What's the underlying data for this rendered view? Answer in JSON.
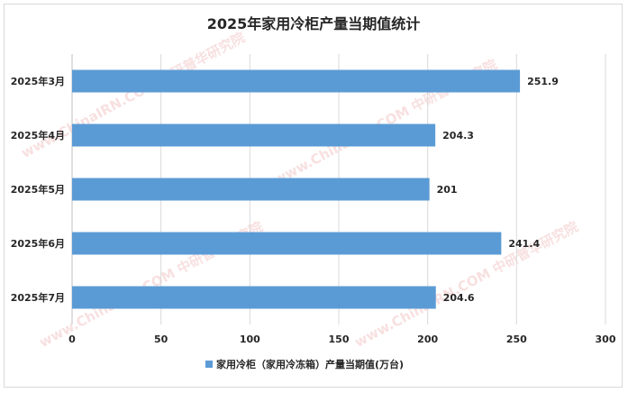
{
  "chart_data": {
    "type": "bar",
    "orientation": "horizontal",
    "title": "2025年家用冷柜产量当期值统计",
    "categories": [
      "2025年3月",
      "2025年4月",
      "2025年5月",
      "2025年6月",
      "2025年7月"
    ],
    "series": [
      {
        "name": "家用冷柜（家用冷冻箱）产量当期值(万台)",
        "values": [
          251.9,
          204.3,
          201,
          241.4,
          204.6
        ],
        "color": "#5b9bd5"
      }
    ],
    "data_labels": [
      "251.9",
      "204.3",
      "201",
      "241.4",
      "204.6"
    ],
    "xlim": [
      0,
      300
    ],
    "x_ticks": [
      "0",
      "50",
      "100",
      "150",
      "200",
      "250",
      "300"
    ],
    "grid": true,
    "legend_position": "bottom"
  },
  "watermark": {
    "text": "www.ChinaIRN.COM 中研普华研究院"
  }
}
